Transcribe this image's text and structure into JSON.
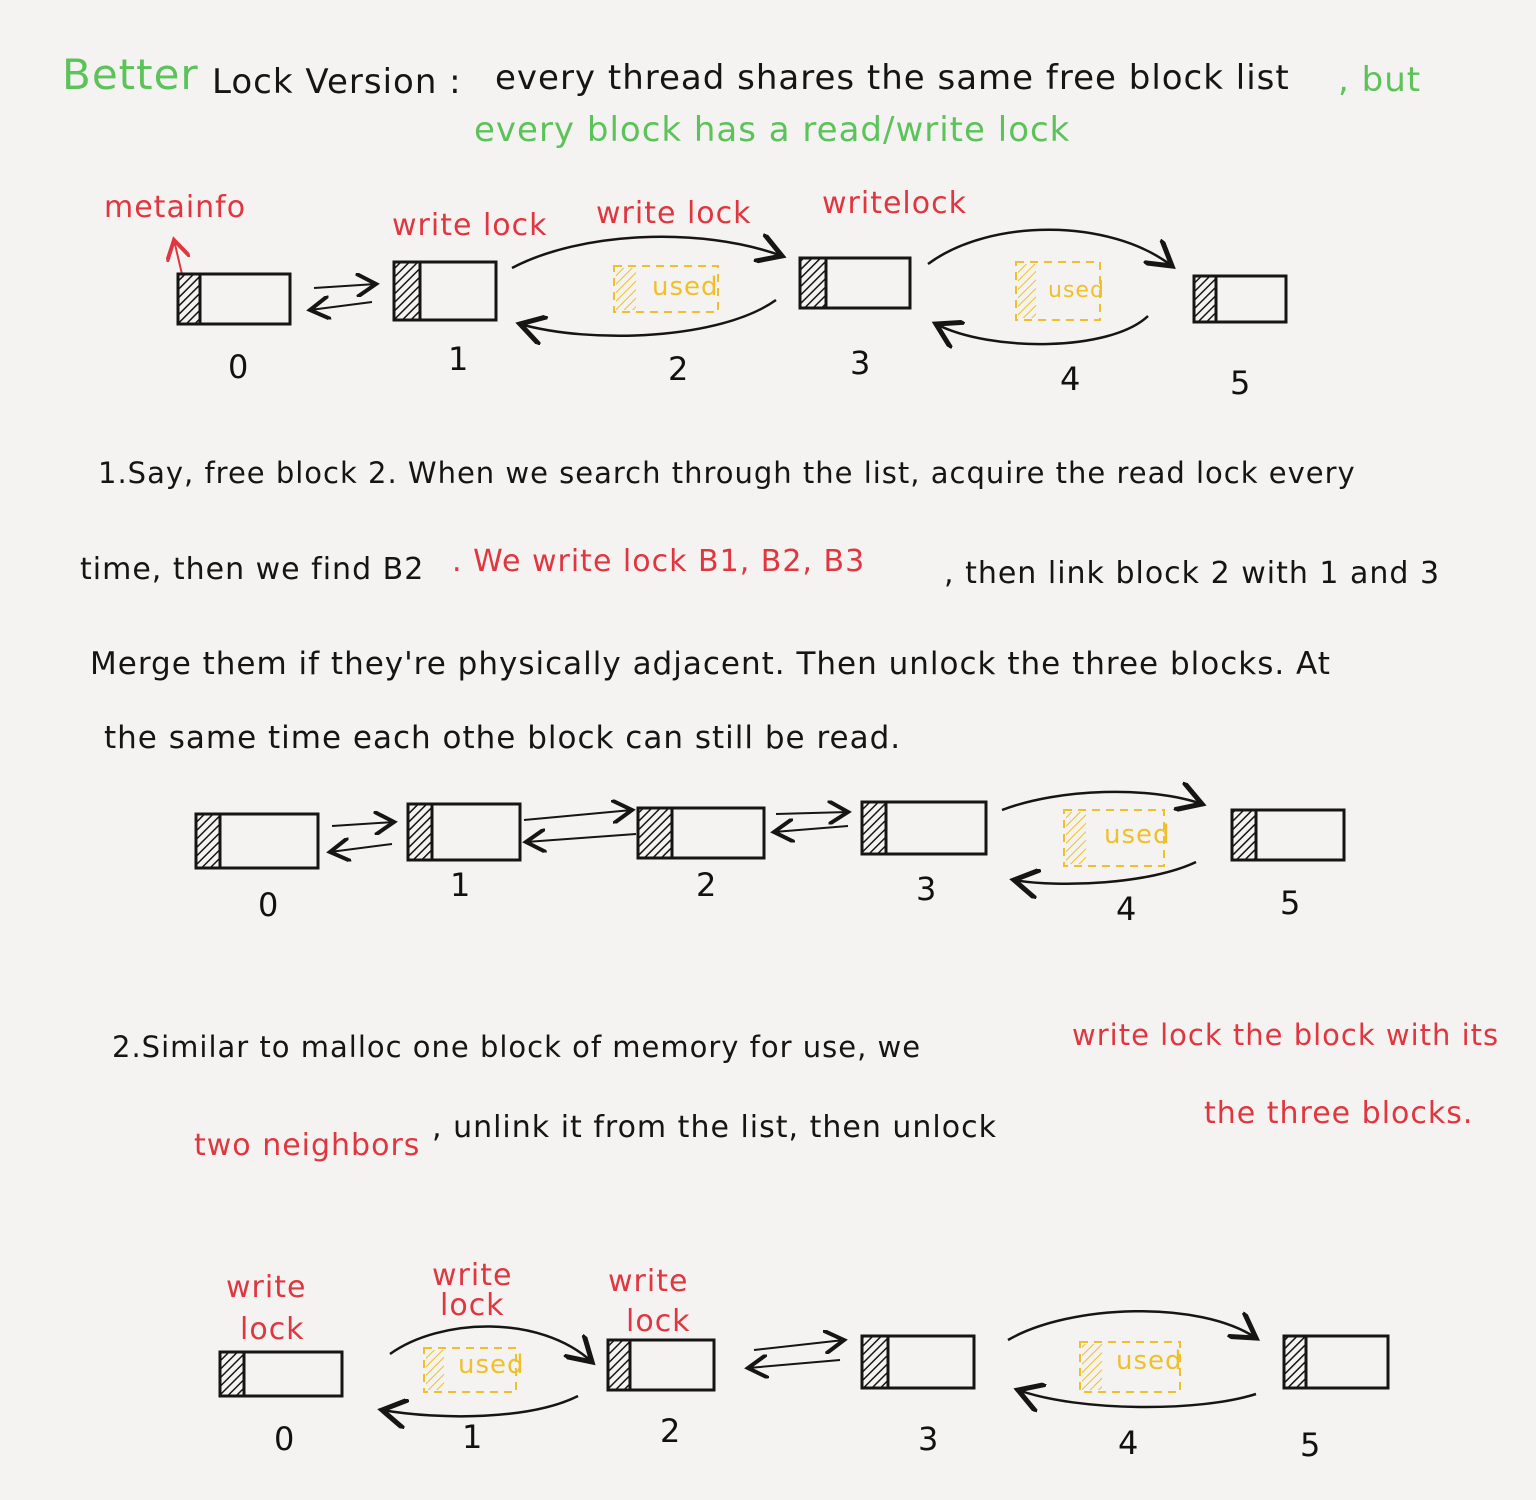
{
  "header": {
    "better": "Better",
    "lock_version": "Lock Version :",
    "shared_list": "every thread shares the same free block list",
    "but": ", but",
    "line2": "every block has a read/write lock"
  },
  "diagram1": {
    "metainfo": "metainfo",
    "write_lock_1": "write lock",
    "write_lock_2": "write lock",
    "write_lock_3": "writelock",
    "used_a": "used",
    "used_b": "used",
    "numbers": [
      "0",
      "1",
      "2",
      "3",
      "4",
      "5"
    ]
  },
  "para1": {
    "line1": "1.Say, free block 2. When we search through the list, acquire the read lock every",
    "line2_a": "time, then we find B2",
    "line2_red": ". We write lock B1, B2, B3",
    "line2_b": ", then link block 2 with 1 and 3",
    "line3": "Merge them if they're physically adjacent. Then unlock the three blocks. At",
    "line4": "the same time each othe block can still be read."
  },
  "diagram2": {
    "used": "used",
    "numbers": [
      "0",
      "1",
      "2",
      "3",
      "4",
      "5"
    ]
  },
  "para2": {
    "line1_a": "2.Similar to malloc one block of memory for use, we",
    "line1_red": "write lock the block with its",
    "line2_red_a": "two neighbors",
    "line2_b": ", unlink it from the list, then unlock",
    "line2_red_c": "the three blocks."
  },
  "diagram3": {
    "write_lock_0_a": "write",
    "write_lock_0_b": "lock",
    "write_lock_1_a": "write",
    "write_lock_1_b": "lock",
    "write_lock_2_a": "write",
    "write_lock_2_b": "lock",
    "used_a": "used",
    "used_b": "used",
    "numbers": [
      "0",
      "1",
      "2",
      "3",
      "4",
      "5"
    ]
  },
  "colors": {
    "ink": "#151515",
    "red": "#e0363f",
    "green": "#5cc35a",
    "yellow": "#efc02a",
    "paper": "#f4f3f1"
  }
}
